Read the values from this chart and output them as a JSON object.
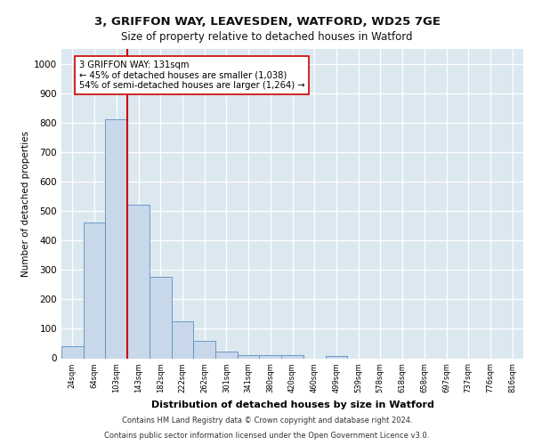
{
  "title_line1": "3, GRIFFON WAY, LEAVESDEN, WATFORD, WD25 7GE",
  "title_line2": "Size of property relative to detached houses in Watford",
  "xlabel": "Distribution of detached houses by size in Watford",
  "ylabel": "Number of detached properties",
  "footer_line1": "Contains HM Land Registry data © Crown copyright and database right 2024.",
  "footer_line2": "Contains public sector information licensed under the Open Government Licence v3.0.",
  "categories": [
    "24sqm",
    "64sqm",
    "103sqm",
    "143sqm",
    "182sqm",
    "222sqm",
    "262sqm",
    "301sqm",
    "341sqm",
    "380sqm",
    "420sqm",
    "460sqm",
    "499sqm",
    "539sqm",
    "578sqm",
    "618sqm",
    "658sqm",
    "697sqm",
    "737sqm",
    "776sqm",
    "816sqm"
  ],
  "values": [
    42,
    460,
    810,
    520,
    275,
    125,
    58,
    22,
    12,
    10,
    10,
    0,
    8,
    0,
    0,
    0,
    0,
    0,
    0,
    0,
    0
  ],
  "bar_color": "#c8d8ea",
  "bar_edge_color": "#5a8fc0",
  "property_line_x": 2.5,
  "property_line_color": "#cc0000",
  "annotation_text": "3 GRIFFON WAY: 131sqm\n← 45% of detached houses are smaller (1,038)\n54% of semi-detached houses are larger (1,264) →",
  "annotation_box_color": "#ffffff",
  "annotation_box_edge": "#cc0000",
  "ylim": [
    0,
    1050
  ],
  "yticks": [
    0,
    100,
    200,
    300,
    400,
    500,
    600,
    700,
    800,
    900,
    1000
  ],
  "background_color": "#ffffff",
  "plot_bg_color": "#dce8f0",
  "grid_color": "#ffffff"
}
